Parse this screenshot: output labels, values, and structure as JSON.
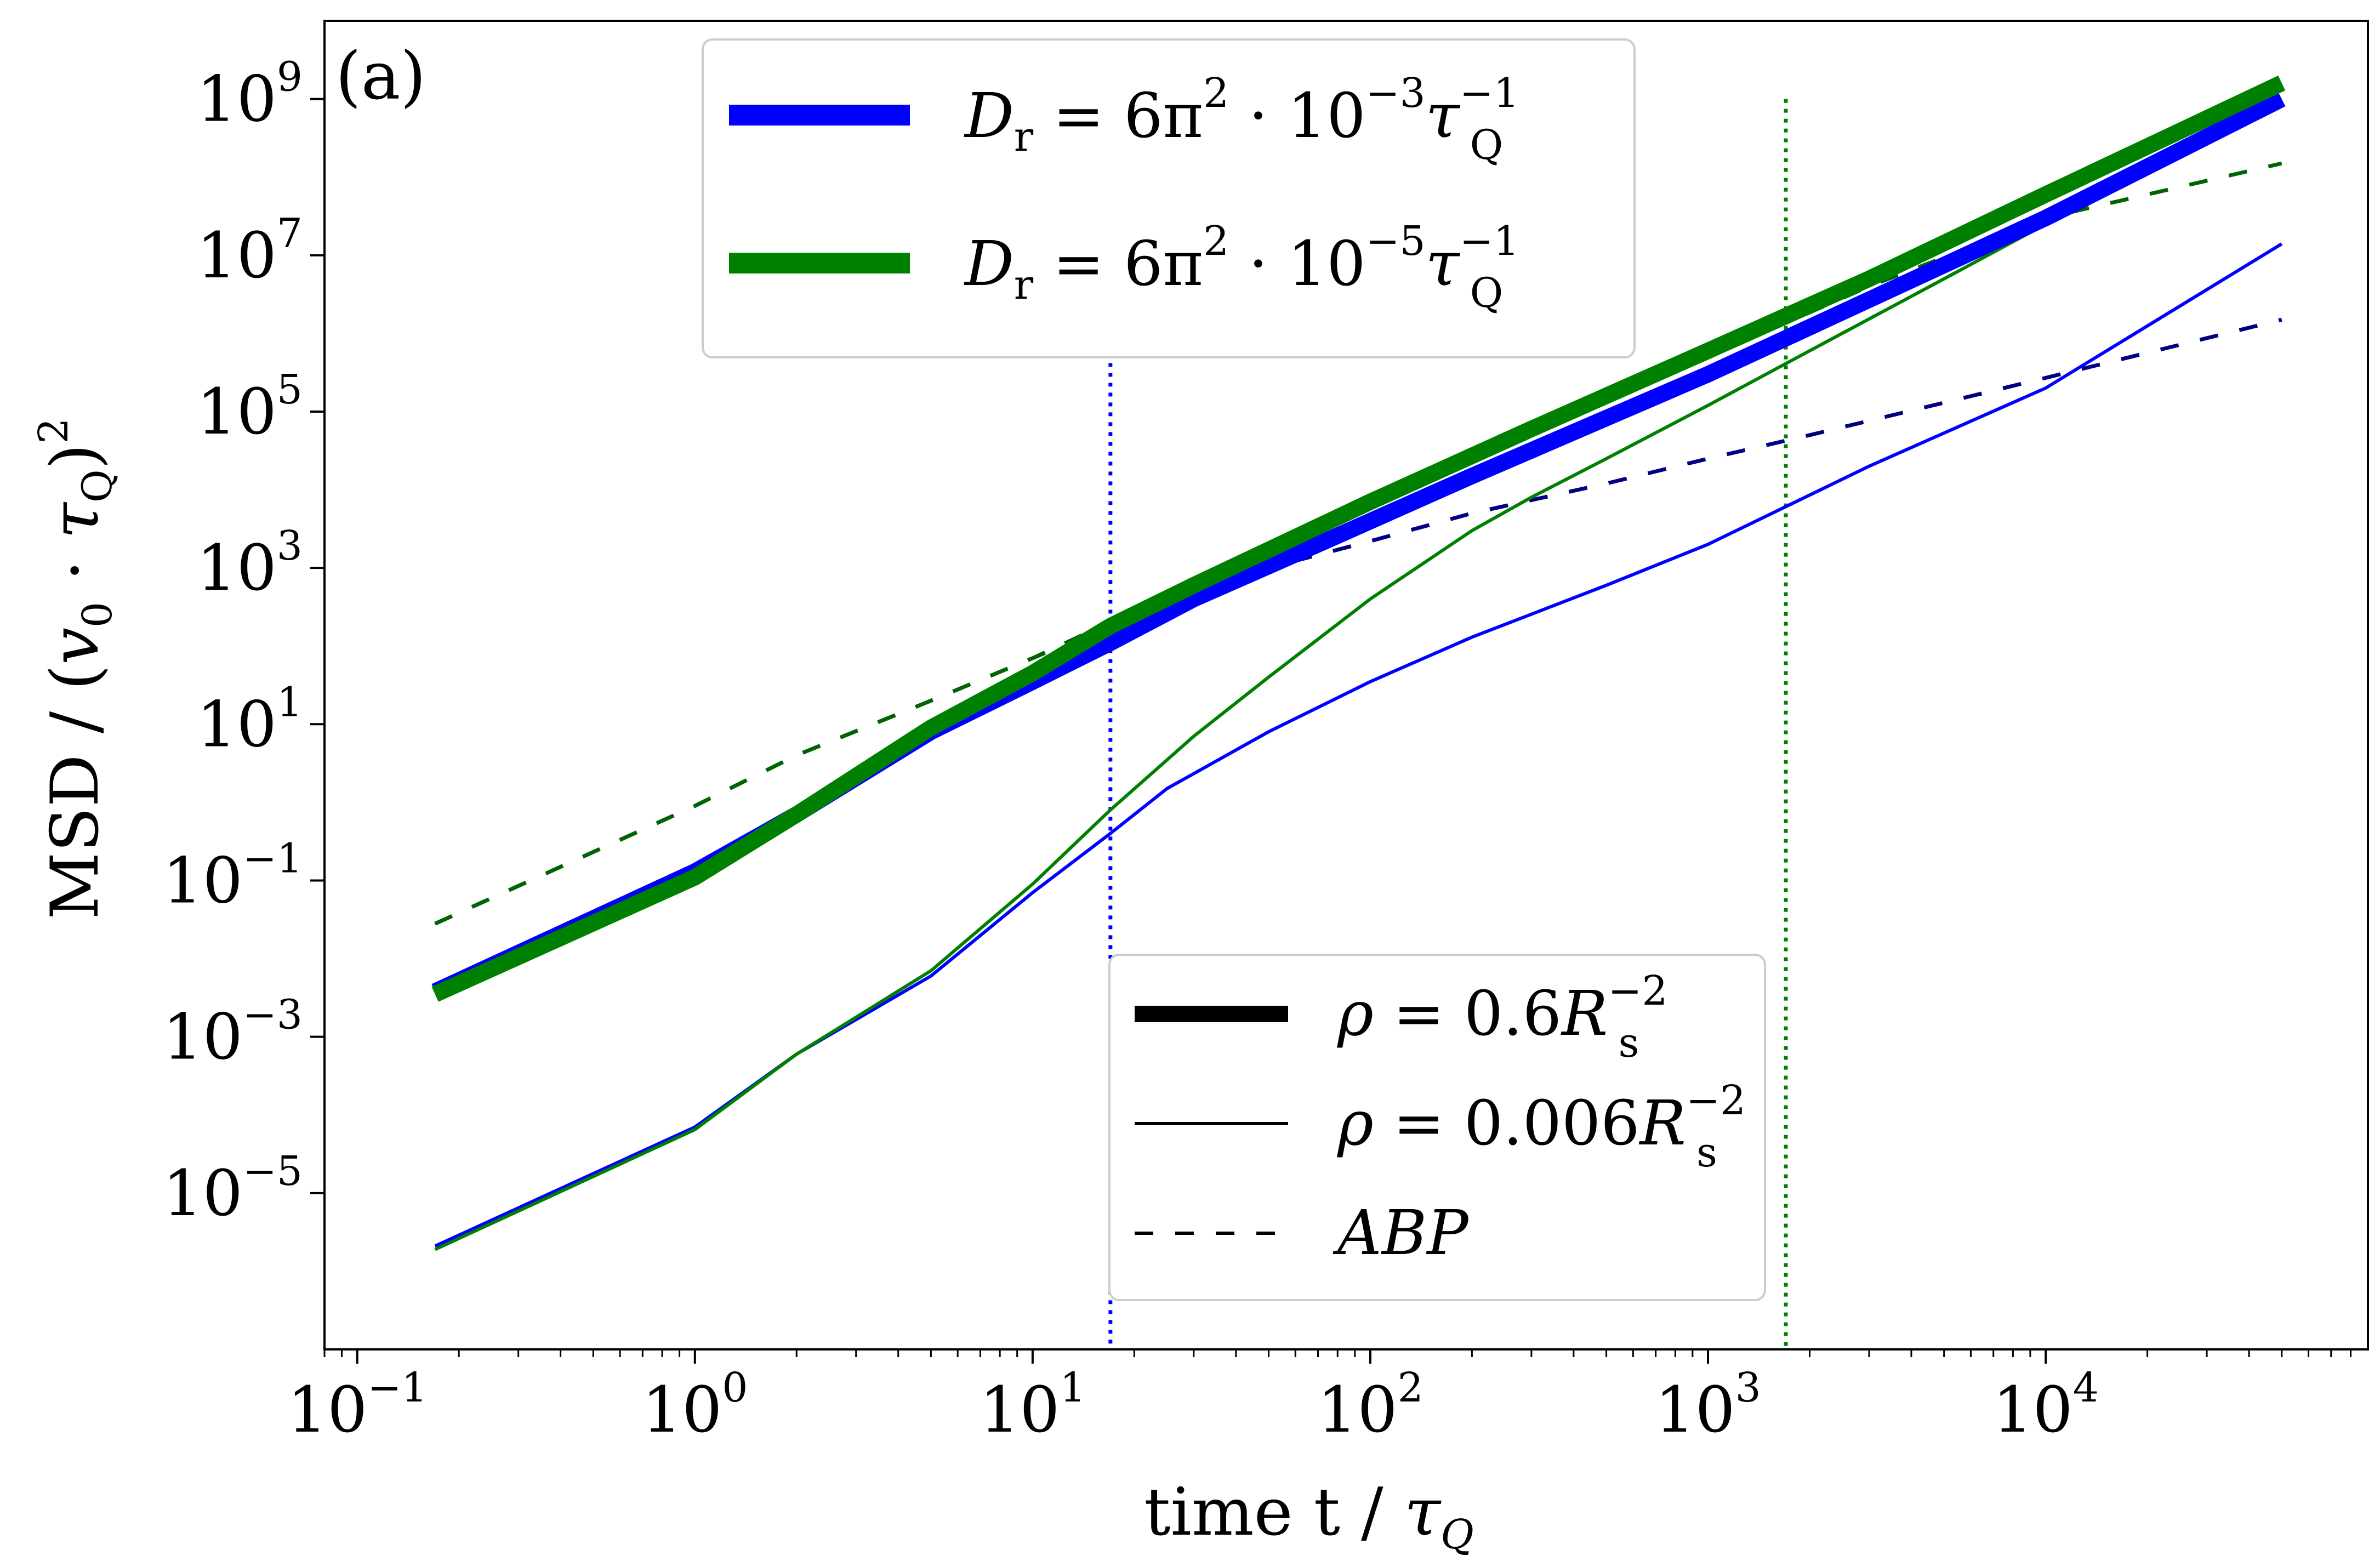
{
  "chart_data": {
    "type": "line",
    "panel_label": "(a)",
    "xlabel": "time t / τQ",
    "ylabel": "MSD / (v0 · τQ)^2",
    "xscale": "log",
    "yscale": "log",
    "xlim": [
      0.08,
      90000
    ],
    "ylim": [
      1e-07,
      10000000000.0
    ],
    "x_ticks": [
      {
        "base": "10",
        "exp": "−1",
        "value": 0.1
      },
      {
        "base": "10",
        "exp": "0",
        "value": 1
      },
      {
        "base": "10",
        "exp": "1",
        "value": 10
      },
      {
        "base": "10",
        "exp": "2",
        "value": 100
      },
      {
        "base": "10",
        "exp": "3",
        "value": 1000
      },
      {
        "base": "10",
        "exp": "4",
        "value": 10000
      }
    ],
    "y_ticks": [
      {
        "base": "10",
        "exp": "−5",
        "value": 1e-05
      },
      {
        "base": "10",
        "exp": "−3",
        "value": 0.001
      },
      {
        "base": "10",
        "exp": "−1",
        "value": 0.1
      },
      {
        "base": "10",
        "exp": "1",
        "value": 10
      },
      {
        "base": "10",
        "exp": "3",
        "value": 1000
      },
      {
        "base": "10",
        "exp": "5",
        "value": 100000
      },
      {
        "base": "10",
        "exp": "7",
        "value": 10000000
      },
      {
        "base": "10",
        "exp": "9",
        "value": 1000000000
      }
    ],
    "colors": {
      "blue": "#0000ff",
      "green": "#008000",
      "navy": "#000080",
      "darkgreen": "#006400",
      "black": "#000000"
    },
    "series": [
      {
        "name": "Dr = 6π²·10⁻³ τQ⁻¹, ρ = 0.6 Rs⁻²",
        "color": "blue",
        "style": "thick",
        "x": [
          0.17,
          1,
          2,
          5,
          10,
          17,
          30,
          70,
          200,
          1000,
          3000,
          10000,
          50000
        ],
        "y": [
          0.0038,
          0.13,
          0.7,
          8,
          35,
          110,
          400,
          2000,
          15000,
          300000,
          2700000,
          30000000,
          1000000000
        ]
      },
      {
        "name": "Dr = 6π²·10⁻⁵ τQ⁻¹, ρ = 0.6 Rs⁻²",
        "color": "green",
        "style": "thick",
        "x": [
          0.17,
          1,
          2,
          5,
          10,
          17,
          30,
          100,
          300,
          1000,
          3000,
          10000,
          50000
        ],
        "y": [
          0.0035,
          0.11,
          0.7,
          9,
          45,
          180,
          600,
          7000,
          60000,
          600000,
          5000000,
          60000000,
          1600000000
        ]
      },
      {
        "name": "Dr = 6π²·10⁻³ τQ⁻¹, ρ = 0.006 Rs⁻²",
        "color": "blue",
        "style": "thin",
        "x": [
          0.17,
          1,
          2,
          5,
          10,
          17,
          25,
          50,
          100,
          200,
          500,
          1000,
          3000,
          10000,
          50000
        ],
        "y": [
          2.1e-06,
          7e-05,
          0.0006,
          0.006,
          0.07,
          0.4,
          1.5,
          8,
          35,
          130,
          600,
          2000,
          20000,
          200000,
          14000000
        ]
      },
      {
        "name": "Dr = 6π²·10⁻⁵ τQ⁻¹, ρ = 0.006 Rs⁻²",
        "color": "green",
        "style": "thin",
        "x": [
          0.17,
          1,
          2,
          5,
          10,
          17,
          30,
          50,
          100,
          200,
          300,
          500,
          1000,
          2000,
          5000,
          10000,
          50000
        ],
        "y": [
          1.9e-06,
          6.5e-05,
          0.0006,
          0.007,
          0.09,
          0.8,
          7,
          40,
          400,
          3000,
          8000,
          25000,
          120000,
          600000,
          5000000,
          25000000,
          900000000
        ]
      },
      {
        "name": "ABP, Dr = 6π²·10⁻³ τQ⁻¹",
        "color": "navy",
        "style": "dashed",
        "x": [
          0.17,
          1,
          2,
          5,
          10,
          20,
          50,
          100,
          200,
          500,
          1000,
          2000,
          5000,
          10000,
          50000
        ],
        "y": [
          0.028,
          0.9,
          4,
          20,
          70,
          250,
          1000,
          2200,
          5000,
          12000,
          25000,
          50000,
          130000,
          270000,
          1500000
        ]
      },
      {
        "name": "ABP, Dr = 6π²·10⁻⁵ τQ⁻¹",
        "color": "darkgreen",
        "style": "dashed",
        "x": [
          0.17,
          1,
          2,
          5,
          10,
          20,
          50,
          100,
          1000,
          3000,
          10000,
          20000,
          50000
        ],
        "y": [
          0.028,
          0.9,
          4,
          20,
          70,
          280,
          1700,
          7000,
          500000,
          4000000,
          30000000,
          60000000,
          150000000
        ]
      }
    ],
    "vlines": [
      {
        "x": 17,
        "color": "blue",
        "style": "dotted",
        "y_top": 1000000.0
      },
      {
        "x": 1700,
        "color": "green",
        "style": "dotted",
        "y_top": 1000000000.0
      }
    ],
    "legend_top": [
      {
        "color": "blue",
        "lhs": "D",
        "sub": "r",
        "mid": " = 6π",
        "sq": "2",
        "dot": " · 10",
        "exp": "−3",
        "tau": "τ",
        "tau_sub": "Q",
        "tau_exp": "−1"
      },
      {
        "color": "green",
        "lhs": "D",
        "sub": "r",
        "mid": " = 6π",
        "sq": "2",
        "dot": " · 10",
        "exp": "−5",
        "tau": "τ",
        "tau_sub": "Q",
        "tau_exp": "−1"
      }
    ],
    "legend_bottom": [
      {
        "style": "thick",
        "rho": "ρ",
        "eq": " = 0.6",
        "R": "R",
        "R_sub": "s",
        "R_exp": "−2"
      },
      {
        "style": "thin",
        "rho": "ρ",
        "eq": " = 0.006",
        "R": "R",
        "R_sub": "s",
        "R_exp": "−2"
      },
      {
        "style": "dashed",
        "label": "ABP"
      }
    ],
    "legend_top_placement": "upper-center",
    "legend_bottom_placement": "lower-right",
    "grid": false
  }
}
